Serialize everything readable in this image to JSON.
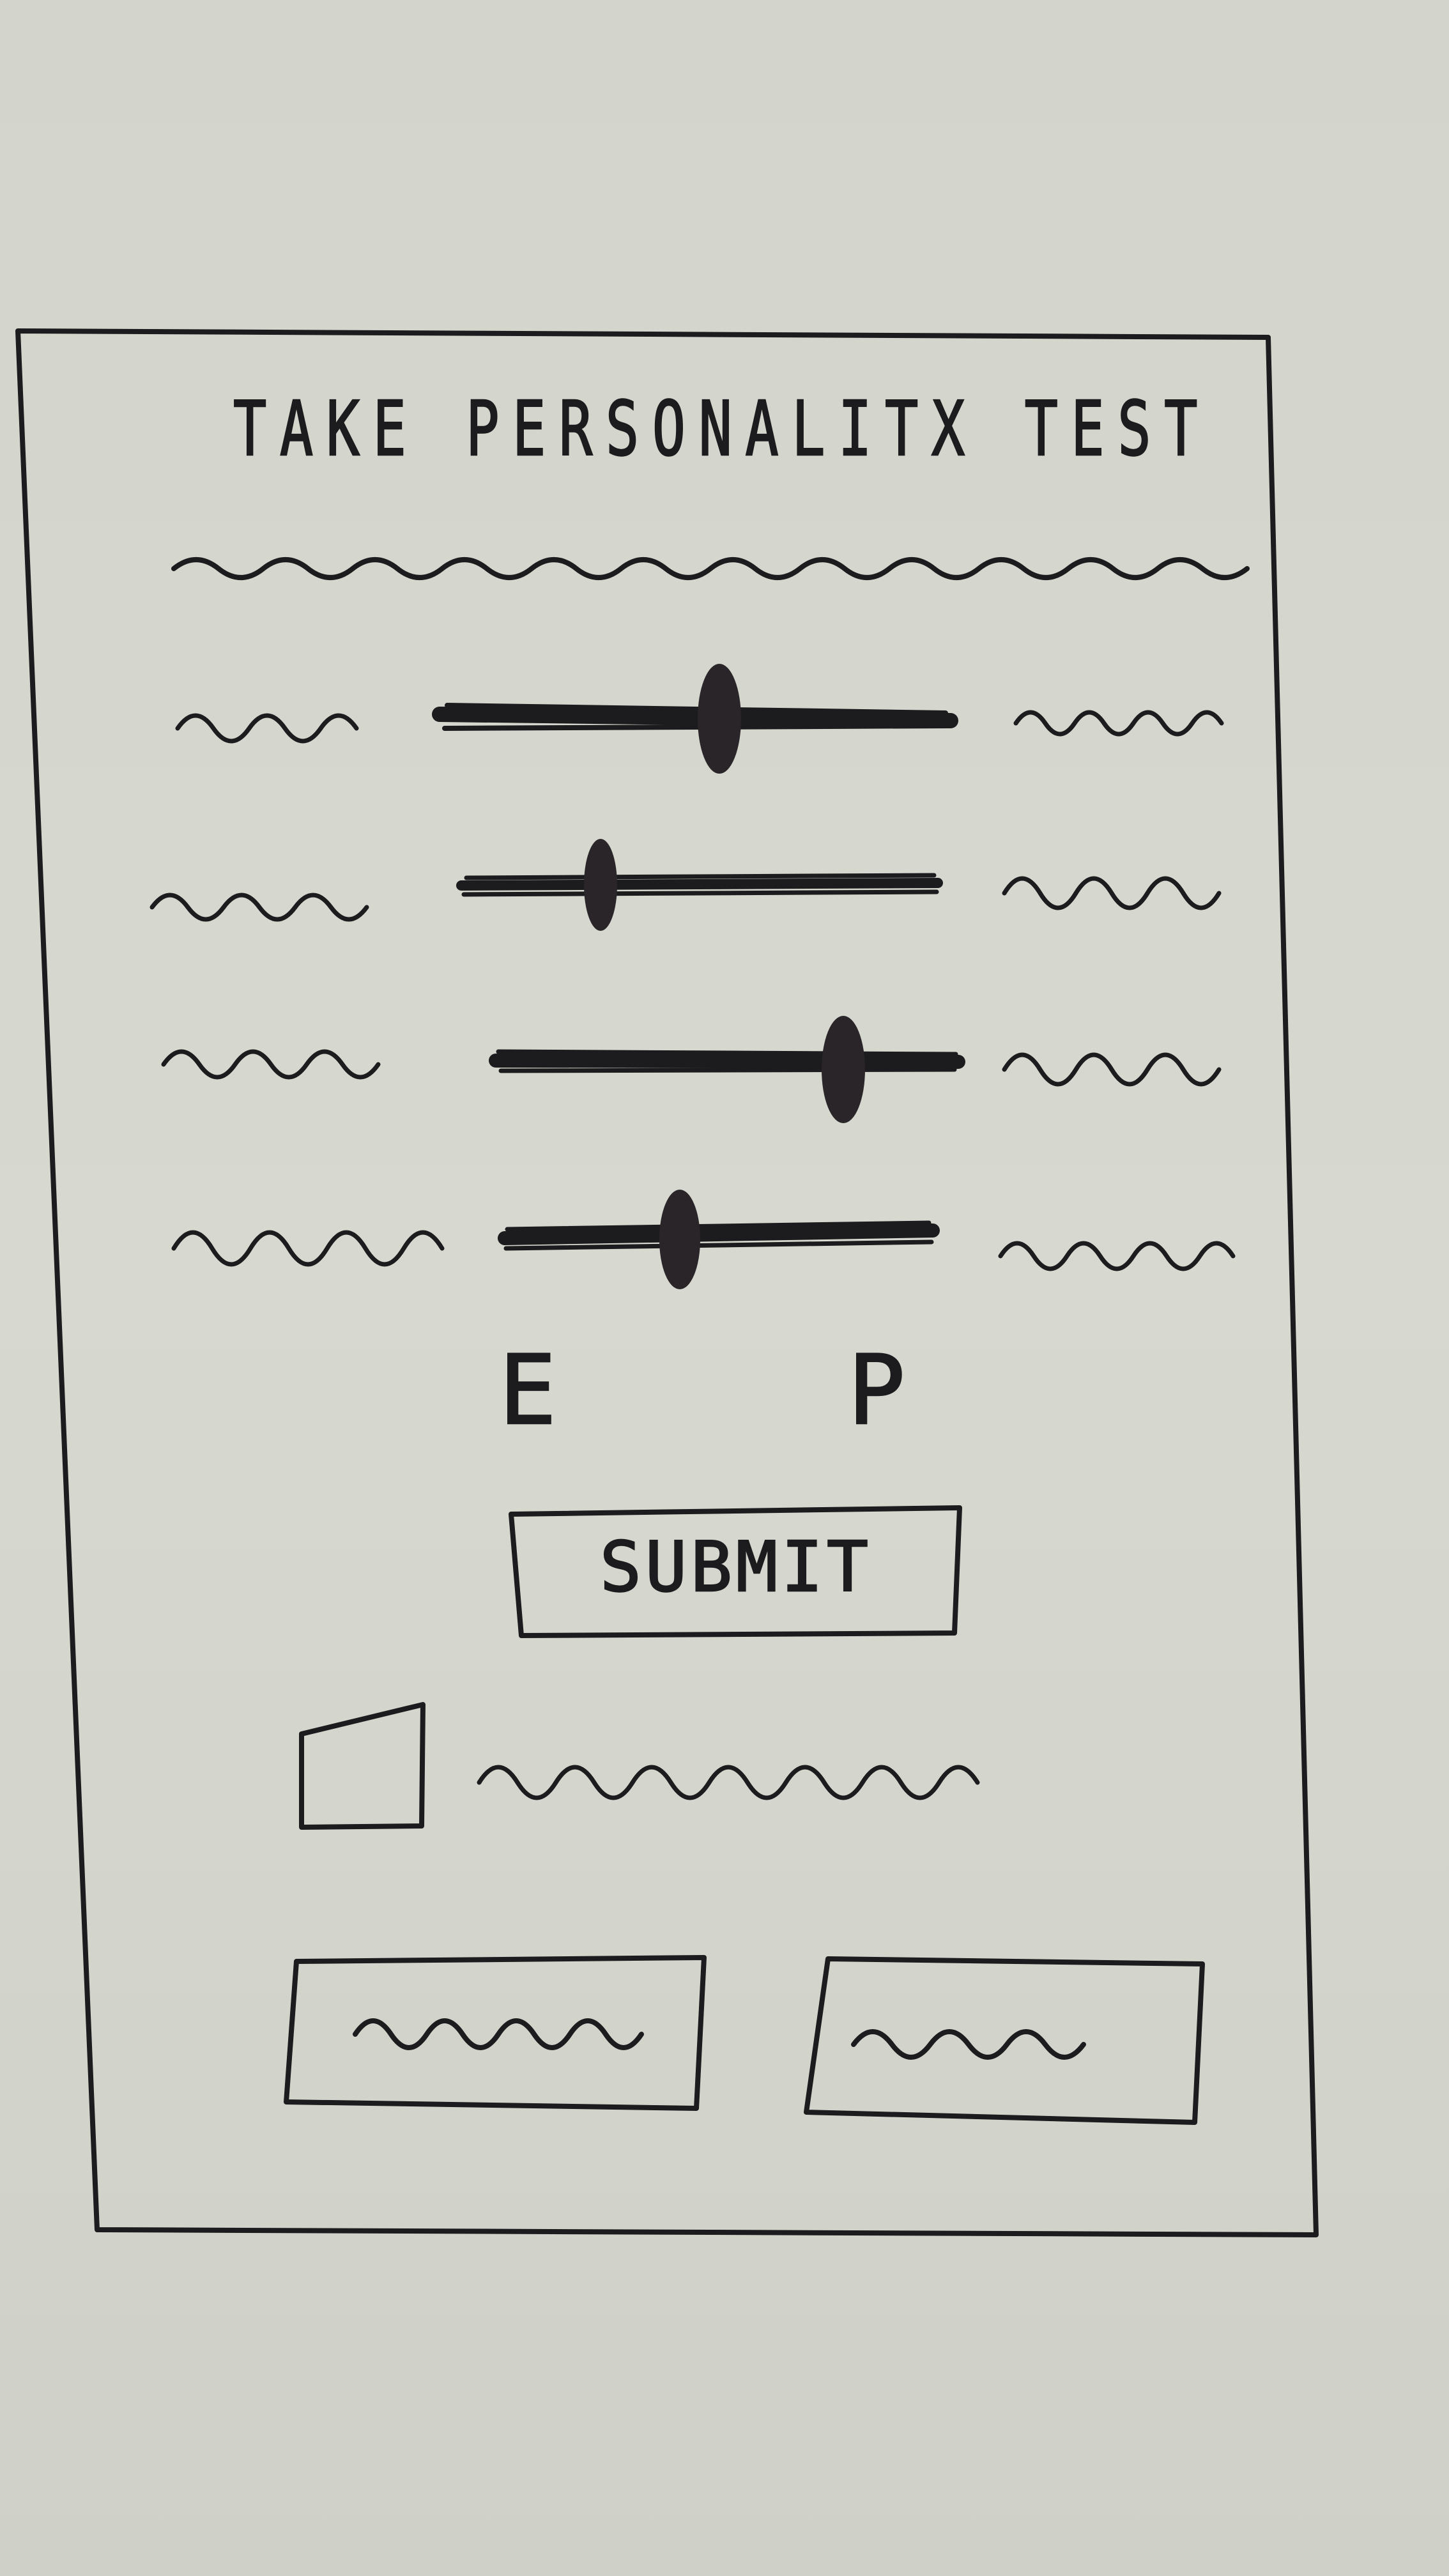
{
  "screen": {
    "title": "TAKE PERSONALITX TEST"
  },
  "sliders": [
    {
      "position": 0.53
    },
    {
      "position": 0.29
    },
    {
      "position": 0.75
    },
    {
      "position": 0.42
    }
  ],
  "scale": {
    "left_label": "E",
    "right_label": "P"
  },
  "submit_button": {
    "label": "SUBMIT"
  },
  "checkbox": {
    "checked": false
  },
  "colors": {
    "paper": "#d6d8d0",
    "ink": "#1c1b1d"
  }
}
